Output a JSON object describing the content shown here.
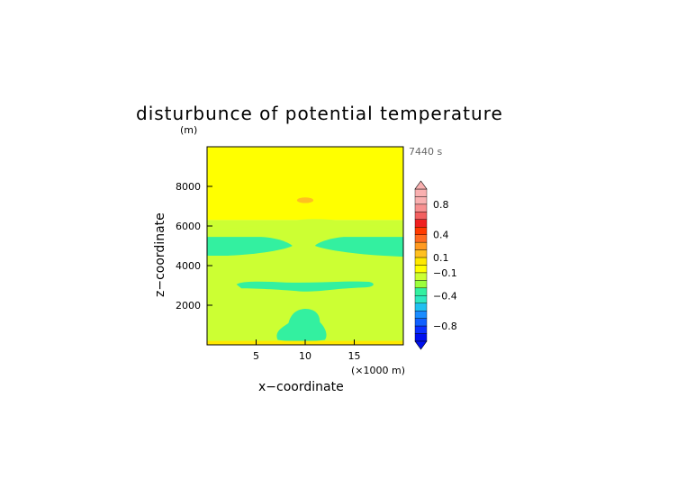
{
  "chart_data": {
    "type": "heatmap",
    "title": "disturbunce of potential temperature",
    "time_label": "7440 s",
    "xlabel": "x−coordinate",
    "x_unit": "(×1000 m)",
    "ylabel": "z−coordinate",
    "y_unit": "(m)",
    "xlim": [
      0,
      20
    ],
    "ylim": [
      0,
      10000
    ],
    "x_ticks": [
      5,
      10,
      15
    ],
    "y_ticks": [
      2000,
      4000,
      6000,
      8000
    ],
    "colorbar": {
      "labels": [
        "0.8",
        "0.4",
        "0.1",
        "−0.1",
        "−0.4",
        "−0.8"
      ],
      "label_levels": [
        0.8,
        0.4,
        0.1,
        -0.1,
        -0.4,
        -0.8
      ],
      "bands": [
        {
          "from": 0.9,
          "to": 1.0,
          "color": "#f9b0b0"
        },
        {
          "from": 0.8,
          "to": 0.9,
          "color": "#f9b0b0"
        },
        {
          "from": 0.7,
          "to": 0.8,
          "color": "#f79090"
        },
        {
          "from": 0.6,
          "to": 0.7,
          "color": "#f26060"
        },
        {
          "from": 0.5,
          "to": 0.6,
          "color": "#ef2020"
        },
        {
          "from": 0.4,
          "to": 0.5,
          "color": "#ff3a00"
        },
        {
          "from": 0.3,
          "to": 0.4,
          "color": "#ff6a20"
        },
        {
          "from": 0.2,
          "to": 0.3,
          "color": "#ff9a20"
        },
        {
          "from": 0.1,
          "to": 0.2,
          "color": "#ffc020"
        },
        {
          "from": 0.0,
          "to": 0.1,
          "color": "#ffe800"
        },
        {
          "from": -0.1,
          "to": 0.0,
          "color": "#ffff00"
        },
        {
          "from": -0.2,
          "to": -0.1,
          "color": "#ccff33"
        },
        {
          "from": -0.3,
          "to": -0.2,
          "color": "#9cff3c"
        },
        {
          "from": -0.4,
          "to": -0.3,
          "color": "#33f0a0"
        },
        {
          "from": -0.5,
          "to": -0.4,
          "color": "#2ee8c0"
        },
        {
          "from": -0.6,
          "to": -0.5,
          "color": "#20c0f0"
        },
        {
          "from": -0.7,
          "to": -0.6,
          "color": "#1a8cff"
        },
        {
          "from": -0.8,
          "to": -0.7,
          "color": "#1060ff"
        },
        {
          "from": -0.9,
          "to": -0.8,
          "color": "#0a30ff"
        },
        {
          "from": -1.0,
          "to": -0.9,
          "color": "#0010ee"
        }
      ],
      "over_color": "#f9b0b0",
      "under_color": "#0010ee"
    },
    "regions": [
      {
        "level": "-0.1 to 0",
        "color": "#ffff00",
        "z_range": [
          6300,
          10000
        ],
        "x_range": [
          0,
          20
        ]
      },
      {
        "level": "-0.2 to -0.1",
        "color": "#ccff33",
        "z_range": [
          200,
          6300
        ],
        "x_range": [
          0,
          20
        ]
      },
      {
        "level": "0.1 to 0.2",
        "color": "#ffc020",
        "z_range": [
          7200,
          7400
        ],
        "x_range": [
          9,
          11
        ]
      },
      {
        "level": "-0.4 to -0.3",
        "color": "#33f0a0",
        "z_range": [
          4500,
          5400
        ],
        "x_range": [
          0,
          8.5
        ]
      },
      {
        "level": "-0.4 to -0.3",
        "color": "#33f0a0",
        "z_range": [
          4500,
          5400
        ],
        "x_range": [
          11,
          20
        ]
      },
      {
        "level": "-0.4 to -0.3",
        "color": "#33f0a0",
        "z_range": [
          2700,
          3200
        ],
        "x_range": [
          3,
          17
        ]
      },
      {
        "level": "-0.4 to -0.3",
        "color": "#33f0a0",
        "z_range": [
          200,
          1800
        ],
        "x_range": [
          7,
          12
        ]
      },
      {
        "level": "0 to 0.1",
        "color": "#ffe800",
        "z_range": [
          0,
          200
        ],
        "x_range": [
          0,
          20
        ]
      }
    ]
  }
}
